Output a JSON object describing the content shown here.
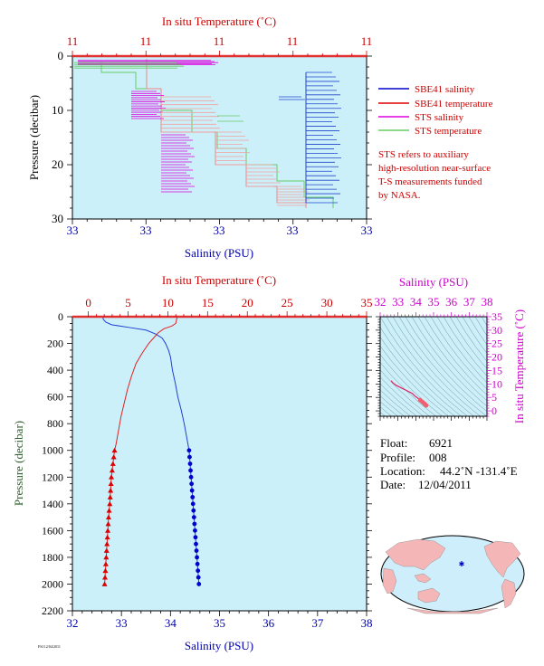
{
  "chart_data": [
    {
      "type": "line",
      "panel": "near-surface profile",
      "top_axis": {
        "label": "In situ Temperature (˚C)",
        "ticks": [
          "11",
          "11",
          "11",
          "11",
          "11"
        ]
      },
      "bottom_axis": {
        "label": "Salinity (PSU)",
        "ticks": [
          "33",
          "33",
          "33",
          "33",
          "33"
        ]
      },
      "y_axis": {
        "label": "Pressure (decibar)",
        "ticks": [
          "0",
          "10",
          "20",
          "30"
        ],
        "ylim": [
          30,
          0
        ]
      },
      "legend": {
        "placement": "right",
        "entries": [
          {
            "label": "SBE41 salinity",
            "color": "#0000cc"
          },
          {
            "label": "SBE41 temperature",
            "color": "#dd0000"
          },
          {
            "label": "STS salinity",
            "color": "#dd00dd"
          },
          {
            "label": "STS temperature",
            "color": "#66cc66"
          }
        ]
      },
      "note": [
        "STS refers to auxiliary",
        "high-resolution near-surface",
        "T-S measurements funded",
        "by NASA."
      ]
    },
    {
      "type": "line",
      "panel": "full-depth profile",
      "top_axis": {
        "label": "In situ Temperature (˚C)",
        "ticks": [
          "0",
          "5",
          "10",
          "15",
          "20",
          "25",
          "30",
          "35"
        ],
        "xlim": [
          -2,
          35
        ]
      },
      "bottom_axis": {
        "label": "Salinity (PSU)",
        "ticks": [
          "32",
          "33",
          "34",
          "35",
          "36",
          "37",
          "38"
        ],
        "xlim": [
          32,
          38
        ]
      },
      "y_axis": {
        "label": "Pressure (decibar)",
        "ticks": [
          "0",
          "200",
          "400",
          "600",
          "800",
          "1000",
          "1200",
          "1400",
          "1600",
          "1800",
          "2000",
          "2200"
        ],
        "ylim": [
          2200,
          0
        ]
      },
      "series": [
        {
          "name": "Salinity",
          "color": "#1f3fd6",
          "line": [
            [
              32.62,
              0
            ],
            [
              32.63,
              20
            ],
            [
              32.68,
              40
            ],
            [
              32.8,
              60
            ],
            [
              33.15,
              80
            ],
            [
              33.5,
              100
            ],
            [
              33.7,
              130
            ],
            [
              33.83,
              160
            ],
            [
              33.9,
              200
            ],
            [
              33.96,
              250
            ],
            [
              34.0,
              300
            ],
            [
              34.04,
              400
            ],
            [
              34.1,
              500
            ],
            [
              34.15,
              600
            ],
            [
              34.22,
              700
            ],
            [
              34.28,
              800
            ],
            [
              34.33,
              900
            ],
            [
              34.38,
              1000
            ]
          ],
          "markers": [
            [
              34.38,
              1000
            ],
            [
              34.39,
              1050
            ],
            [
              34.4,
              1100
            ],
            [
              34.41,
              1150
            ],
            [
              34.42,
              1200
            ],
            [
              34.43,
              1250
            ],
            [
              34.44,
              1300
            ],
            [
              34.45,
              1350
            ],
            [
              34.46,
              1400
            ],
            [
              34.47,
              1450
            ],
            [
              34.48,
              1500
            ],
            [
              34.49,
              1550
            ],
            [
              34.5,
              1600
            ],
            [
              34.51,
              1650
            ],
            [
              34.52,
              1700
            ],
            [
              34.53,
              1750
            ],
            [
              34.54,
              1800
            ],
            [
              34.55,
              1850
            ],
            [
              34.56,
              1900
            ],
            [
              34.57,
              1950
            ],
            [
              34.58,
              2000
            ]
          ]
        },
        {
          "name": "Temperature",
          "color": "#e02020",
          "line": [
            [
              11.2,
              0
            ],
            [
              11.1,
              20
            ],
            [
              11.0,
              50
            ],
            [
              10.5,
              70
            ],
            [
              9.5,
              90
            ],
            [
              8.8,
              120
            ],
            [
              8.2,
              160
            ],
            [
              7.6,
              200
            ],
            [
              6.8,
              270
            ],
            [
              6.0,
              350
            ],
            [
              5.4,
              450
            ],
            [
              4.9,
              550
            ],
            [
              4.5,
              650
            ],
            [
              4.1,
              750
            ],
            [
              3.8,
              850
            ],
            [
              3.5,
              950
            ],
            [
              3.3,
              1000
            ]
          ],
          "markers": [
            [
              3.3,
              1000
            ],
            [
              3.2,
              1050
            ],
            [
              3.1,
              1100
            ],
            [
              3.0,
              1150
            ],
            [
              2.9,
              1200
            ],
            [
              2.85,
              1250
            ],
            [
              2.8,
              1300
            ],
            [
              2.75,
              1350
            ],
            [
              2.7,
              1400
            ],
            [
              2.62,
              1450
            ],
            [
              2.55,
              1500
            ],
            [
              2.5,
              1550
            ],
            [
              2.45,
              1600
            ],
            [
              2.4,
              1650
            ],
            [
              2.35,
              1700
            ],
            [
              2.3,
              1750
            ],
            [
              2.25,
              1800
            ],
            [
              2.2,
              1850
            ],
            [
              2.15,
              1900
            ],
            [
              2.1,
              1950
            ],
            [
              2.05,
              2000
            ]
          ]
        }
      ]
    },
    {
      "type": "scatter",
      "panel": "T-S diagram",
      "x_axis": {
        "label": "Salinity (PSU)",
        "ticks": [
          "32",
          "33",
          "34",
          "35",
          "36",
          "37",
          "38"
        ],
        "xlim": [
          32,
          38
        ]
      },
      "y_axis": {
        "label": "In situ Temperature (˚C)",
        "ticks": [
          "0",
          "5",
          "10",
          "15",
          "20",
          "25",
          "30",
          "35"
        ],
        "ylim": [
          -2,
          35
        ]
      },
      "curve": [
        [
          32.62,
          11.2
        ],
        [
          32.7,
          10.5
        ],
        [
          32.9,
          9.5
        ],
        [
          33.2,
          8.5
        ],
        [
          33.5,
          7.5
        ],
        [
          33.8,
          6.5
        ],
        [
          33.95,
          5.5
        ],
        [
          34.1,
          4.8
        ],
        [
          34.25,
          4.0
        ],
        [
          34.38,
          3.3
        ],
        [
          34.5,
          2.6
        ],
        [
          34.58,
          2.05
        ]
      ]
    }
  ],
  "info": {
    "float_label": "Float:",
    "float_value": "6921",
    "profile_label": "Profile:",
    "profile_value": "008",
    "location_label": "Location:",
    "location_value": "44.2˚N  -131.4˚E",
    "date_label": "Date:",
    "date_value": "12/04/2011"
  },
  "footer_text": "FSI 12/04/2011",
  "colors": {
    "panel_bg": "#ccf0fa",
    "red": "#cc0000",
    "blue": "#0000aa",
    "magenta": "#cc00cc",
    "axis_green": "#2e5e2e"
  }
}
